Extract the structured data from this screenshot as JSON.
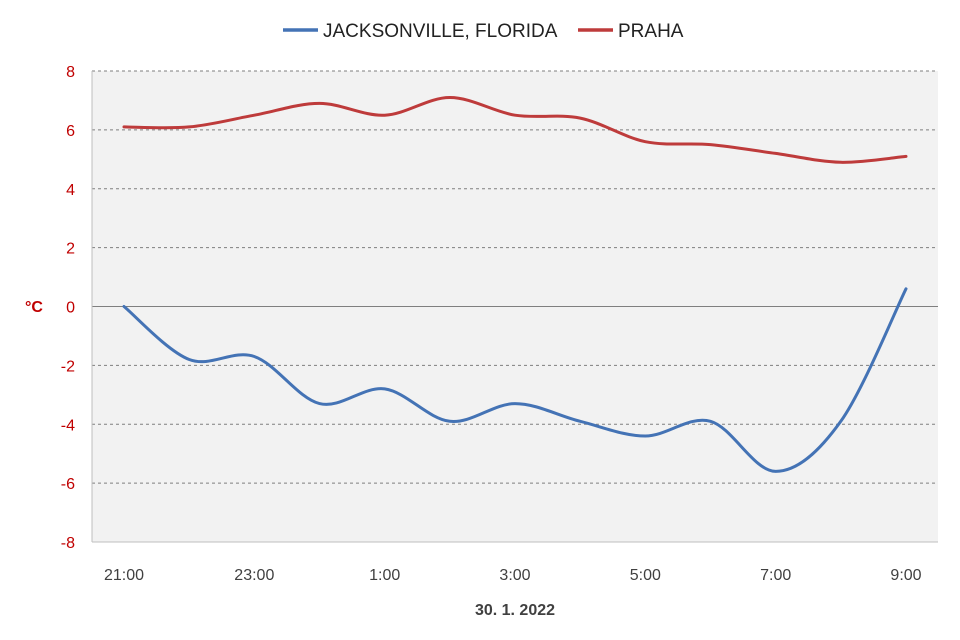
{
  "chart_data": {
    "type": "line",
    "xlabel": "30. 1. 2022",
    "ylabel": "°C",
    "ylim": [
      -8,
      8
    ],
    "y_ticks": [
      "8",
      "6",
      "4",
      "2",
      "0",
      "-2",
      "-4",
      "-6",
      "-8"
    ],
    "x": [
      "21:00",
      "22:00",
      "23:00",
      "0:00",
      "1:00",
      "2:00",
      "3:00",
      "4:00",
      "5:00",
      "6:00",
      "7:00",
      "8:00",
      "9:00"
    ],
    "x_tick_labels": [
      "21:00",
      "23:00",
      "1:00",
      "3:00",
      "5:00",
      "7:00",
      "9:00"
    ],
    "grid": true,
    "legend": "top-center",
    "series": [
      {
        "name": "JACKSONVILLE, FLORIDA",
        "color": "#4473b5",
        "values": [
          0.0,
          -1.8,
          -1.7,
          -3.3,
          -2.8,
          -3.9,
          -3.3,
          -3.9,
          -4.4,
          -3.9,
          -5.6,
          -3.9,
          0.6
        ]
      },
      {
        "name": "PRAHA",
        "color": "#be3b3b",
        "values": [
          6.1,
          6.1,
          6.5,
          6.9,
          6.5,
          7.1,
          6.5,
          6.4,
          5.6,
          5.5,
          5.2,
          4.9,
          5.1
        ]
      }
    ]
  }
}
